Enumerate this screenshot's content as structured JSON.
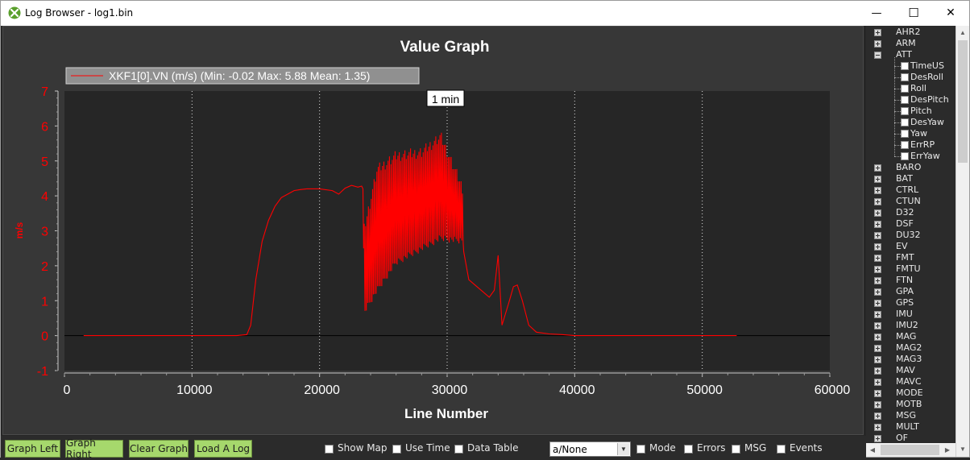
{
  "window": {
    "title": "Log Browser - log1.bin",
    "icon": "mission-planner-icon",
    "controls": {
      "minimize": "—",
      "maximize": "☐",
      "close": "✕"
    }
  },
  "graph": {
    "title": "Value Graph",
    "legend": "XKF1[0].VN (m/s) (Min: -0.02 Max: 5.88 Mean: 1.35)",
    "marker_label": "1 min",
    "xlabel": "Line Number",
    "ylabel": "m/s",
    "colors": {
      "series": "#ff0000",
      "plot_bg": "#262626",
      "axis_text": "#ffffff",
      "y_axis_text": "#ff0000"
    }
  },
  "chart_data": {
    "type": "line",
    "title": "Value Graph",
    "xlabel": "Line Number",
    "ylabel": "m/s",
    "xlim": [
      0,
      60000
    ],
    "ylim": [
      -1,
      7
    ],
    "x_ticks": [
      "0",
      "10000",
      "20000",
      "30000",
      "40000",
      "50000",
      "60000"
    ],
    "y_ticks": [
      "-1",
      "0",
      "1",
      "2",
      "3",
      "4",
      "5",
      "6",
      "7"
    ],
    "grid": "vertical dotted",
    "legend_position": "top-left",
    "vertical_marker": {
      "x": 30000,
      "label": "1 min"
    },
    "series": [
      {
        "name": "XKF1[0].VN (m/s)",
        "stats": {
          "min": -0.02,
          "max": 5.88,
          "mean": 1.35
        },
        "x": [
          1500,
          5000,
          10000,
          12300,
          13500,
          14300,
          14600,
          15000,
          15500,
          16000,
          16500,
          17000,
          17500,
          18000,
          18500,
          19000,
          20000,
          21000,
          21500,
          22000,
          22500,
          23000,
          23300,
          23400,
          23450
        ],
        "y": [
          0.0,
          0.0,
          0.0,
          0.0,
          0.0,
          0.03,
          0.3,
          1.6,
          2.7,
          3.3,
          3.7,
          3.95,
          4.05,
          4.15,
          4.18,
          4.2,
          4.2,
          4.15,
          4.05,
          4.22,
          4.3,
          4.25,
          4.28,
          4.2,
          2.5
        ],
        "oscillation": {
          "x_range": [
            23500,
            31300
          ],
          "low": [
            [
              23500,
              0.6
            ],
            [
              24500,
              1.2
            ],
            [
              26000,
              2.0
            ],
            [
              28000,
              2.4
            ],
            [
              29500,
              2.7
            ],
            [
              31300,
              2.6
            ]
          ],
          "high": [
            [
              23500,
              3.2
            ],
            [
              24500,
              4.9
            ],
            [
              26000,
              5.3
            ],
            [
              28000,
              5.4
            ],
            [
              29500,
              5.85
            ],
            [
              31300,
              4.3
            ]
          ]
        },
        "x2": [
          31300,
          31700,
          32500,
          33300,
          33700,
          34000,
          34300,
          34800,
          35200,
          35500,
          35900,
          36400,
          37000,
          38000,
          39000,
          40000,
          42000,
          45000,
          48000,
          50000,
          52700
        ],
        "y2": [
          2.4,
          1.6,
          1.35,
          1.1,
          1.3,
          2.3,
          0.3,
          0.9,
          1.4,
          1.45,
          1.0,
          0.3,
          0.1,
          0.05,
          0.03,
          0.0,
          0.0,
          0.0,
          0.0,
          0.0,
          0.0
        ]
      }
    ]
  },
  "tree": {
    "items": [
      {
        "label": "AHR2",
        "expanded": false
      },
      {
        "label": "ARM",
        "expanded": false
      },
      {
        "label": "ATT",
        "expanded": true,
        "children": [
          "TimeUS",
          "DesRoll",
          "Roll",
          "DesPitch",
          "Pitch",
          "DesYaw",
          "Yaw",
          "ErrRP",
          "ErrYaw"
        ]
      },
      {
        "label": "BARO",
        "expanded": false
      },
      {
        "label": "BAT",
        "expanded": false
      },
      {
        "label": "CTRL",
        "expanded": false
      },
      {
        "label": "CTUN",
        "expanded": false
      },
      {
        "label": "D32",
        "expanded": false
      },
      {
        "label": "DSF",
        "expanded": false
      },
      {
        "label": "DU32",
        "expanded": false
      },
      {
        "label": "EV",
        "expanded": false
      },
      {
        "label": "FMT",
        "expanded": false
      },
      {
        "label": "FMTU",
        "expanded": false
      },
      {
        "label": "FTN",
        "expanded": false
      },
      {
        "label": "GPA",
        "expanded": false
      },
      {
        "label": "GPS",
        "expanded": false
      },
      {
        "label": "IMU",
        "expanded": false
      },
      {
        "label": "IMU2",
        "expanded": false
      },
      {
        "label": "MAG",
        "expanded": false
      },
      {
        "label": "MAG2",
        "expanded": false
      },
      {
        "label": "MAG3",
        "expanded": false
      },
      {
        "label": "MAV",
        "expanded": false
      },
      {
        "label": "MAVC",
        "expanded": false
      },
      {
        "label": "MODE",
        "expanded": false
      },
      {
        "label": "MOTB",
        "expanded": false
      },
      {
        "label": "MSG",
        "expanded": false
      },
      {
        "label": "MULT",
        "expanded": false
      },
      {
        "label": "OF",
        "expanded": false
      }
    ]
  },
  "toolbar": {
    "graph_left": "Graph Left",
    "graph_right": "Graph Right",
    "clear_graph": "Clear Graph",
    "load_log": "Load A Log",
    "show_map": "Show Map",
    "use_time": "Use Time",
    "data_table": "Data Table",
    "combo_value": "a/None",
    "mode": "Mode",
    "errors": "Errors",
    "msg": "MSG",
    "events": "Events"
  }
}
